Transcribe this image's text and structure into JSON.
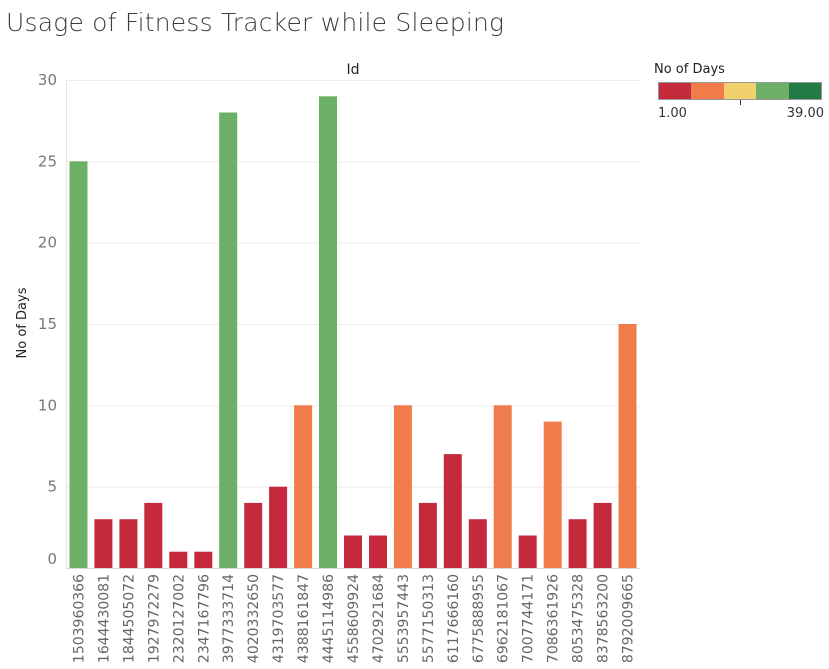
{
  "chart_data": {
    "type": "bar",
    "title": "Usage of Fitness Tracker while Sleeping",
    "column_header": "Id",
    "ylabel": "No of Days",
    "ylim": [
      0,
      30
    ],
    "yticks": [
      0,
      5,
      10,
      15,
      20,
      25,
      30
    ],
    "grid": true,
    "categories": [
      "1503960366",
      "1644430081",
      "1844505072",
      "1927972279",
      "2320127002",
      "2347167796",
      "3977333714",
      "4020332650",
      "4319703577",
      "4388161847",
      "4445114986",
      "4558609924",
      "4702921684",
      "5553957443",
      "5577150313",
      "6117666160",
      "6775888955",
      "6962181067",
      "7007744171",
      "7086361926",
      "8053475328",
      "8378563200",
      "8792009665"
    ],
    "values": [
      25,
      3,
      3,
      4,
      1,
      1,
      28,
      4,
      5,
      10,
      29,
      2,
      2,
      10,
      4,
      7,
      3,
      10,
      2,
      9,
      3,
      4,
      15
    ],
    "color_legend": {
      "title": "No of Days",
      "min_label": "1.00",
      "max_label": "39.00",
      "min": 1,
      "max": 39,
      "colors": [
        "#c42a3c",
        "#f07b4b",
        "#f2d06b",
        "#6bb066",
        "#237a44"
      ]
    },
    "legend_position": "top-right"
  }
}
